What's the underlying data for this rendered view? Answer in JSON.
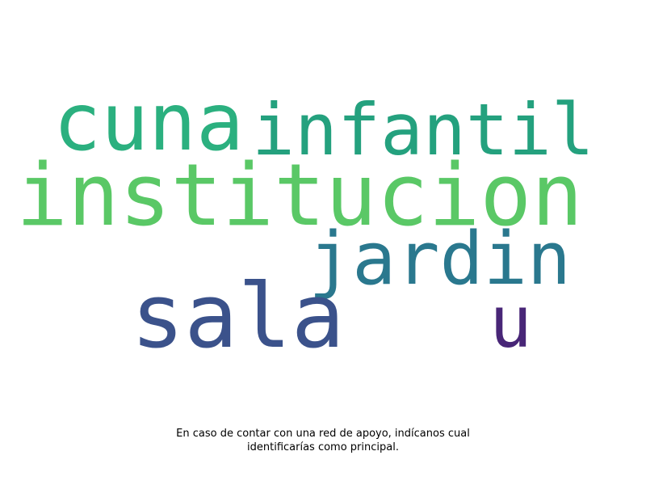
{
  "word_cloud": {
    "words": [
      {
        "text": "cuna",
        "color": "#2bb07f"
      },
      {
        "text": "infantil",
        "color": "#24a17e"
      },
      {
        "text": "institucion",
        "color": "#5ac866"
      },
      {
        "text": "jardin",
        "color": "#2a788e"
      },
      {
        "text": "sala",
        "color": "#3b528b"
      },
      {
        "text": "u",
        "color": "#482677"
      }
    ]
  },
  "caption": {
    "line1": "En caso de contar con una red de apoyo, indícanos cual",
    "line2": "identificarías como principal."
  }
}
